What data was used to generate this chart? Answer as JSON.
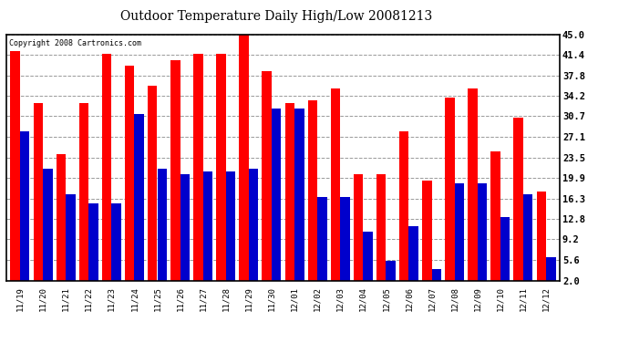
{
  "title": "Outdoor Temperature Daily High/Low 20081213",
  "copyright": "Copyright 2008 Cartronics.com",
  "dates": [
    "11/19",
    "11/20",
    "11/21",
    "11/22",
    "11/23",
    "11/24",
    "11/25",
    "11/26",
    "11/27",
    "11/28",
    "11/29",
    "11/30",
    "12/01",
    "12/02",
    "12/03",
    "12/04",
    "12/05",
    "12/06",
    "12/07",
    "12/08",
    "12/09",
    "12/10",
    "12/11",
    "12/12"
  ],
  "highs": [
    42.0,
    33.0,
    24.0,
    33.0,
    41.5,
    39.5,
    36.0,
    40.5,
    41.5,
    41.5,
    45.0,
    38.5,
    33.0,
    33.5,
    35.5,
    20.5,
    20.5,
    28.0,
    19.5,
    34.0,
    35.5,
    24.5,
    30.5,
    17.5
  ],
  "lows": [
    28.0,
    21.5,
    17.0,
    15.5,
    15.5,
    31.0,
    21.5,
    20.5,
    21.0,
    21.0,
    21.5,
    32.0,
    32.0,
    16.5,
    16.5,
    10.5,
    5.5,
    11.5,
    4.0,
    19.0,
    19.0,
    13.0,
    17.0,
    6.0
  ],
  "high_color": "#ff0000",
  "low_color": "#0000cc",
  "bg_color": "#ffffff",
  "grid_color": "#999999",
  "yticks": [
    2.0,
    5.6,
    9.2,
    12.8,
    16.3,
    19.9,
    23.5,
    27.1,
    30.7,
    34.2,
    37.8,
    41.4,
    45.0
  ],
  "ymin": 2.0,
  "ymax": 45.0,
  "bar_width": 0.42
}
